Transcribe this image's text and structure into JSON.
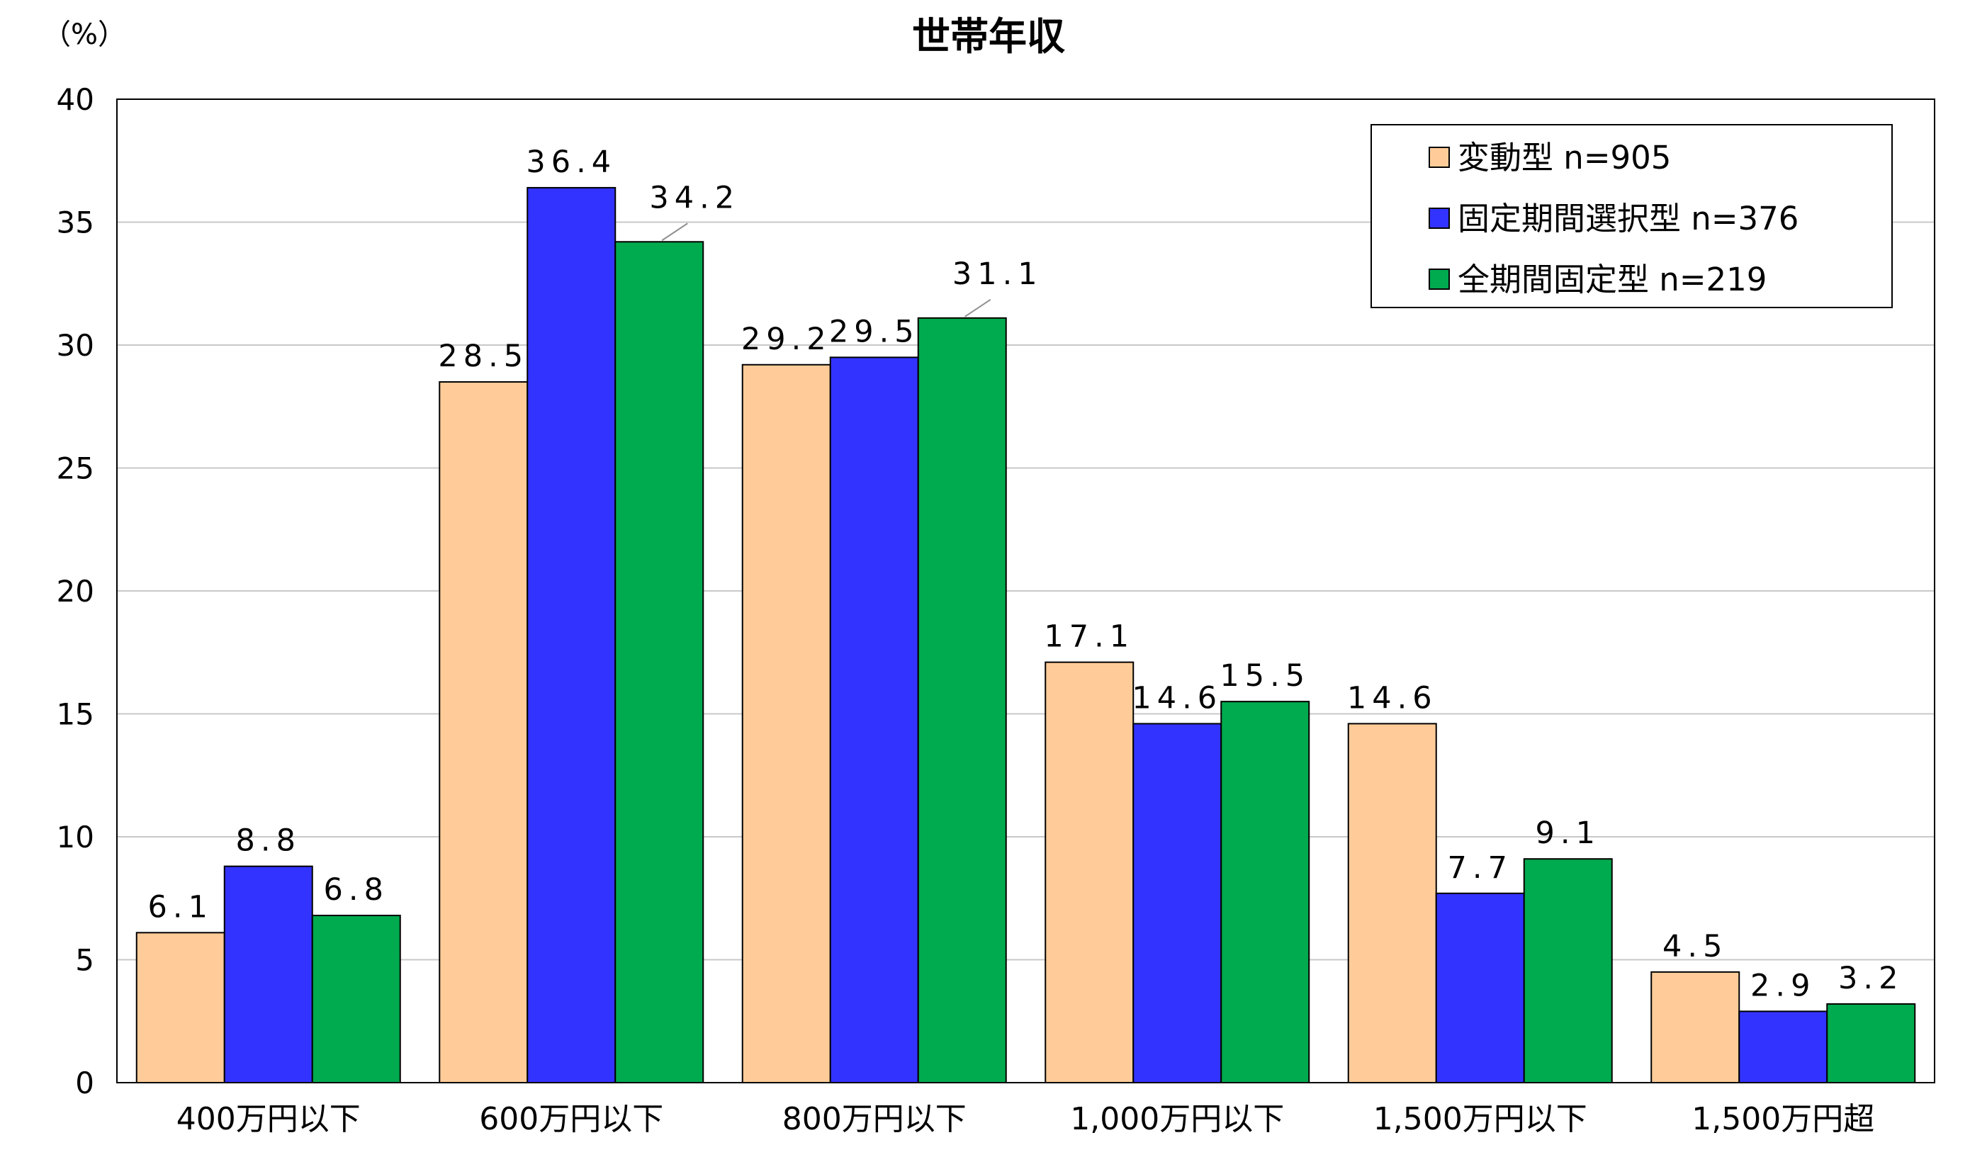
{
  "chart_data": {
    "type": "bar",
    "title": "世帯年収",
    "unit_label": "（%）",
    "categories": [
      "400万円以下",
      "600万円以下",
      "800万円以下",
      "1,000万円以下",
      "1,500万円以下",
      "1,500万円超"
    ],
    "series": [
      {
        "name": "変動型 n=905",
        "color": "#FFCC99",
        "values": [
          6.1,
          28.5,
          29.2,
          17.1,
          14.6,
          4.5
        ],
        "labels": [
          "6.1",
          "28.5",
          "29.2",
          "17.1",
          "14.6",
          "4.5"
        ]
      },
      {
        "name": "固定期間選択型 n=376",
        "color": "#3333FF",
        "values": [
          8.8,
          36.4,
          29.5,
          14.6,
          7.7,
          2.9
        ],
        "labels": [
          "8.8",
          "36.4",
          "29.5",
          "14.6",
          "7.7",
          "2.9"
        ]
      },
      {
        "name": "全期間固定型 n=219",
        "color": "#00AA4E",
        "values": [
          6.8,
          34.2,
          31.1,
          15.5,
          9.1,
          3.2
        ],
        "labels": [
          "6.8",
          "34.2",
          "31.1",
          "15.5",
          "9.1",
          "3.2"
        ]
      }
    ],
    "ylim": [
      0,
      40
    ],
    "yticks": [
      0,
      5,
      10,
      15,
      20,
      25,
      30,
      35,
      40
    ],
    "ytick_labels": [
      "0",
      "5",
      "10",
      "15",
      "20",
      "25",
      "30",
      "35",
      "40"
    ],
    "grid": true,
    "legend_position": "top-right"
  }
}
